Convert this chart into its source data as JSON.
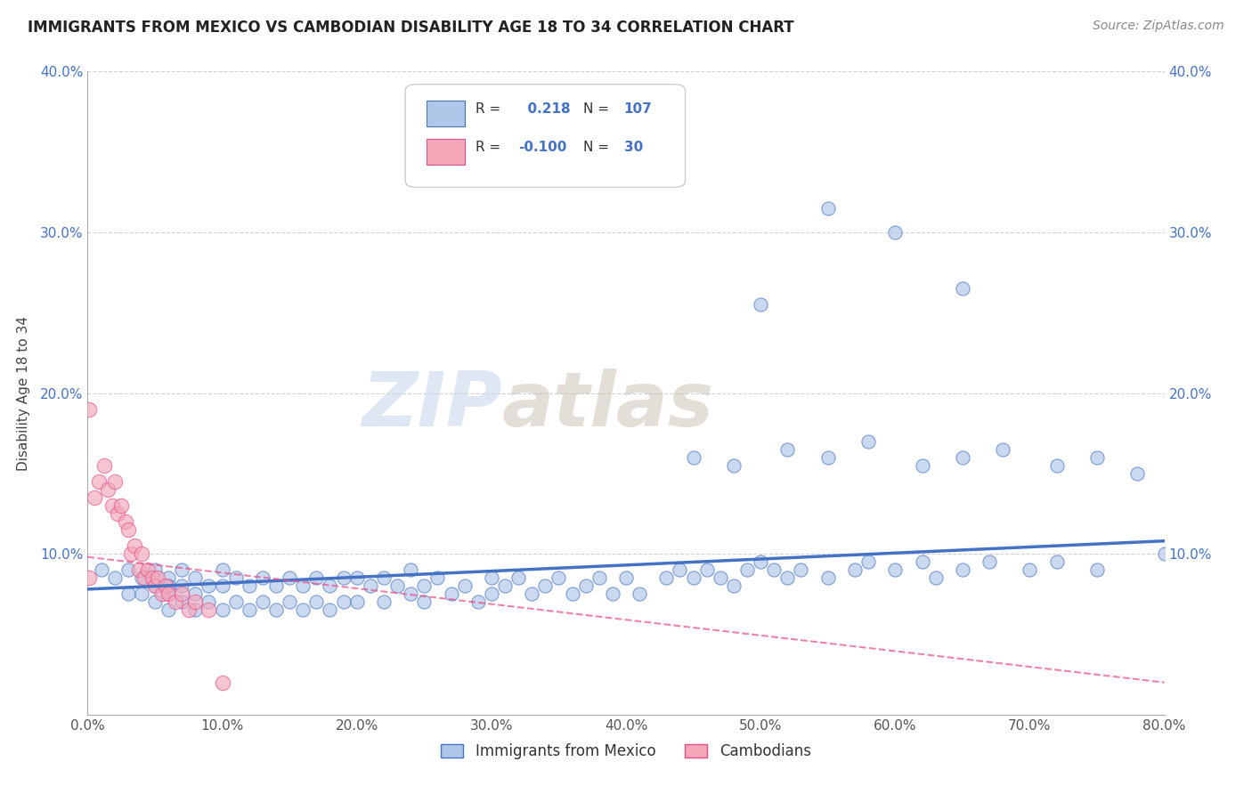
{
  "title": "IMMIGRANTS FROM MEXICO VS CAMBODIAN DISABILITY AGE 18 TO 34 CORRELATION CHART",
  "source": "Source: ZipAtlas.com",
  "ylabel": "Disability Age 18 to 34",
  "r_mexico": 0.218,
  "n_mexico": 107,
  "r_cambodian": -0.1,
  "n_cambodian": 30,
  "xlim": [
    0.0,
    0.8
  ],
  "ylim": [
    0.0,
    0.4
  ],
  "xticks": [
    0.0,
    0.1,
    0.2,
    0.3,
    0.4,
    0.5,
    0.6,
    0.7,
    0.8
  ],
  "yticks": [
    0.0,
    0.1,
    0.2,
    0.3,
    0.4
  ],
  "xtick_labels": [
    "0.0%",
    "10.0%",
    "20.0%",
    "30.0%",
    "40.0%",
    "50.0%",
    "60.0%",
    "70.0%",
    "80.0%"
  ],
  "ytick_labels": [
    "",
    "10.0%",
    "20.0%",
    "30.0%",
    "40.0%"
  ],
  "color_mexico": "#aec6e8",
  "color_cambodian": "#f4a7b9",
  "line_color_mexico": "#4472C4",
  "line_color_cambodian": "#E84D8A",
  "background_color": "#ffffff",
  "mexico_x": [
    0.01,
    0.02,
    0.03,
    0.03,
    0.04,
    0.04,
    0.05,
    0.05,
    0.05,
    0.06,
    0.06,
    0.06,
    0.06,
    0.07,
    0.07,
    0.07,
    0.08,
    0.08,
    0.08,
    0.09,
    0.09,
    0.1,
    0.1,
    0.1,
    0.11,
    0.11,
    0.12,
    0.12,
    0.13,
    0.13,
    0.14,
    0.14,
    0.15,
    0.15,
    0.16,
    0.16,
    0.17,
    0.17,
    0.18,
    0.18,
    0.19,
    0.19,
    0.2,
    0.2,
    0.21,
    0.22,
    0.22,
    0.23,
    0.24,
    0.24,
    0.25,
    0.25,
    0.26,
    0.27,
    0.28,
    0.29,
    0.3,
    0.3,
    0.31,
    0.32,
    0.33,
    0.34,
    0.35,
    0.36,
    0.37,
    0.38,
    0.39,
    0.4,
    0.41,
    0.43,
    0.44,
    0.45,
    0.46,
    0.47,
    0.48,
    0.49,
    0.5,
    0.51,
    0.52,
    0.53,
    0.55,
    0.57,
    0.58,
    0.6,
    0.62,
    0.63,
    0.65,
    0.67,
    0.7,
    0.72,
    0.75,
    0.45,
    0.48,
    0.52,
    0.55,
    0.58,
    0.62,
    0.65,
    0.68,
    0.72,
    0.75,
    0.78,
    0.8,
    0.5,
    0.55,
    0.6,
    0.65
  ],
  "mexico_y": [
    0.09,
    0.085,
    0.09,
    0.075,
    0.085,
    0.075,
    0.09,
    0.08,
    0.07,
    0.085,
    0.08,
    0.075,
    0.065,
    0.09,
    0.08,
    0.07,
    0.085,
    0.075,
    0.065,
    0.08,
    0.07,
    0.09,
    0.08,
    0.065,
    0.085,
    0.07,
    0.08,
    0.065,
    0.085,
    0.07,
    0.08,
    0.065,
    0.085,
    0.07,
    0.08,
    0.065,
    0.085,
    0.07,
    0.08,
    0.065,
    0.085,
    0.07,
    0.085,
    0.07,
    0.08,
    0.085,
    0.07,
    0.08,
    0.09,
    0.075,
    0.08,
    0.07,
    0.085,
    0.075,
    0.08,
    0.07,
    0.085,
    0.075,
    0.08,
    0.085,
    0.075,
    0.08,
    0.085,
    0.075,
    0.08,
    0.085,
    0.075,
    0.085,
    0.075,
    0.085,
    0.09,
    0.085,
    0.09,
    0.085,
    0.08,
    0.09,
    0.095,
    0.09,
    0.085,
    0.09,
    0.085,
    0.09,
    0.095,
    0.09,
    0.095,
    0.085,
    0.09,
    0.095,
    0.09,
    0.095,
    0.09,
    0.16,
    0.155,
    0.165,
    0.16,
    0.17,
    0.155,
    0.16,
    0.165,
    0.155,
    0.16,
    0.15,
    0.1,
    0.255,
    0.315,
    0.3,
    0.265
  ],
  "cambodian_x": [
    0.001,
    0.001,
    0.005,
    0.008,
    0.012,
    0.015,
    0.018,
    0.02,
    0.022,
    0.025,
    0.028,
    0.03,
    0.032,
    0.035,
    0.038,
    0.04,
    0.042,
    0.045,
    0.048,
    0.05,
    0.052,
    0.055,
    0.058,
    0.06,
    0.065,
    0.07,
    0.075,
    0.08,
    0.09,
    0.1
  ],
  "cambodian_y": [
    0.19,
    0.085,
    0.135,
    0.145,
    0.155,
    0.14,
    0.13,
    0.145,
    0.125,
    0.13,
    0.12,
    0.115,
    0.1,
    0.105,
    0.09,
    0.1,
    0.085,
    0.09,
    0.085,
    0.08,
    0.085,
    0.075,
    0.08,
    0.075,
    0.07,
    0.075,
    0.065,
    0.07,
    0.065,
    0.02
  ],
  "mexico_trend_x": [
    0.0,
    0.8
  ],
  "mexico_trend_y": [
    0.078,
    0.108
  ],
  "cambodian_trend_x": [
    0.0,
    0.8
  ],
  "cambodian_trend_y": [
    0.098,
    0.02
  ]
}
